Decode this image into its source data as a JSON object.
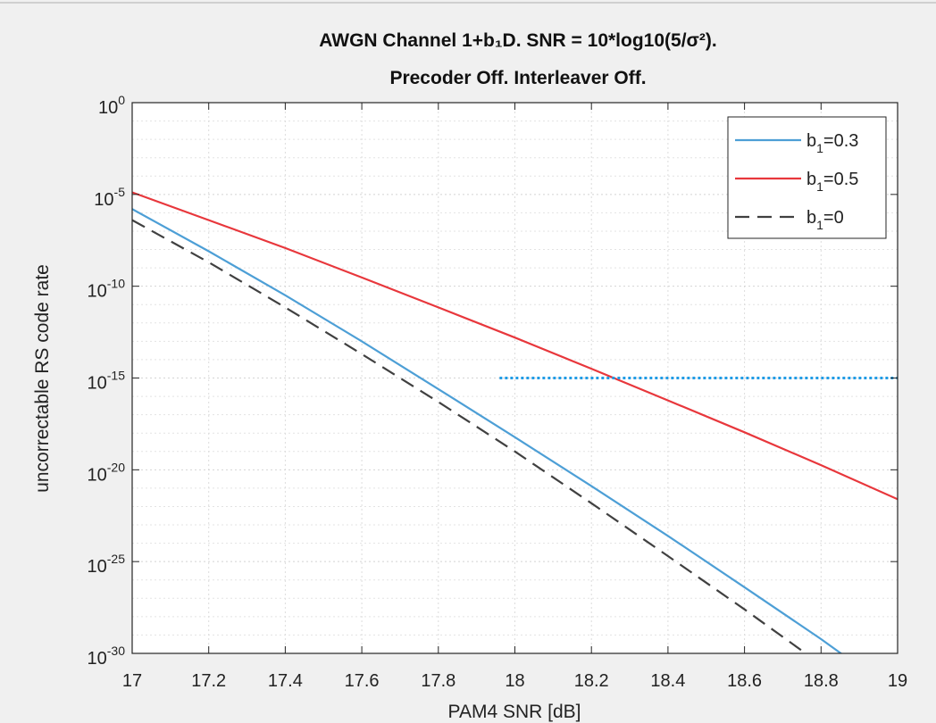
{
  "figure": {
    "background": "#f0f0f0",
    "top_border_color": "#cfcfcf"
  },
  "chart_data": {
    "type": "line",
    "title_line1": "AWGN Channel 1+b₁D. SNR = 10*log10(5/σ²).",
    "title_line2": "Precoder Off. Interleaver Off.",
    "xlabel": "PAM4 SNR [dB]",
    "ylabel": "uncorrectable RS code rate",
    "xlim": [
      17,
      19
    ],
    "ylim_exponent": [
      -30,
      0
    ],
    "y_scale": "log",
    "grid": true,
    "minor_grid": true,
    "x_ticks": [
      "17",
      "17.2",
      "17.4",
      "17.6",
      "17.8",
      "18",
      "18.2",
      "18.4",
      "18.6",
      "18.8",
      "19"
    ],
    "y_ticks": [
      {
        "base": "10",
        "exp": "0"
      },
      {
        "base": "10",
        "exp": "-5"
      },
      {
        "base": "10",
        "exp": "-10"
      },
      {
        "base": "10",
        "exp": "-15"
      },
      {
        "base": "10",
        "exp": "-20"
      },
      {
        "base": "10",
        "exp": "-25"
      },
      {
        "base": "10",
        "exp": "-30"
      }
    ],
    "legend_position": "top-right",
    "series": [
      {
        "name": "b₁=0.3",
        "legend_base": "b",
        "legend_sub": "1",
        "legend_rest": "=0.3",
        "color": "#4d9fd6",
        "dash": "solid",
        "x": [
          17.0,
          17.2,
          17.4,
          17.6,
          17.8,
          18.0,
          18.2,
          18.4,
          18.6,
          18.8,
          19.0
        ],
        "y": [
          1.6e-06,
          8e-09,
          3.2e-11,
          1e-13,
          2.5e-16,
          6e-19,
          1.3e-21,
          2.5e-24,
          4e-27,
          6e-30,
          6e-33
        ]
      },
      {
        "name": "b₁=0.5",
        "legend_base": "b",
        "legend_sub": "1",
        "legend_rest": "=0.5",
        "color": "#e8373c",
        "dash": "solid",
        "x": [
          17.0,
          17.2,
          17.4,
          17.6,
          17.8,
          18.0,
          18.2,
          18.4,
          18.6,
          18.8,
          19.0
        ],
        "y": [
          1.3e-05,
          4e-07,
          1.2e-08,
          3e-10,
          7e-12,
          1.6e-13,
          3.2e-15,
          6e-17,
          1.1e-18,
          1.8e-20,
          2.5e-22
        ]
      },
      {
        "name": "b₁=0",
        "legend_base": "b",
        "legend_sub": "1",
        "legend_rest": "=0",
        "color": "#404040",
        "dash": "dashed",
        "x": [
          17.0,
          17.2,
          17.4,
          17.6,
          17.8,
          18.0,
          18.2,
          18.4,
          18.6,
          18.8,
          19.0
        ],
        "y": [
          4e-07,
          2e-09,
          7e-12,
          2e-14,
          5e-17,
          1e-19,
          1.5e-22,
          2e-25,
          2.5e-28,
          2.5e-31,
          2e-34
        ]
      }
    ],
    "annotation_line": {
      "type": "hline",
      "y": 1e-15,
      "x_start": 17.96,
      "x_end": 19.0,
      "color": "#1f9be6",
      "dash": "dotted"
    }
  }
}
